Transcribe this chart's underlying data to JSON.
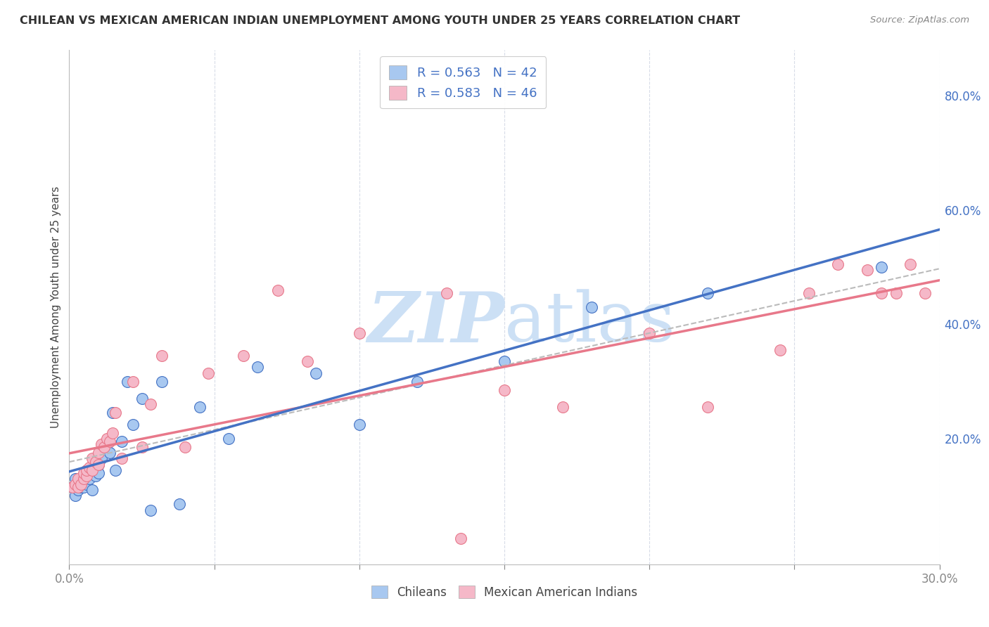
{
  "title": "CHILEAN VS MEXICAN AMERICAN INDIAN UNEMPLOYMENT AMONG YOUTH UNDER 25 YEARS CORRELATION CHART",
  "source": "Source: ZipAtlas.com",
  "ylabel": "Unemployment Among Youth under 25 years",
  "xlim": [
    0.0,
    0.3
  ],
  "ylim": [
    -0.02,
    0.88
  ],
  "xtick_positions": [
    0.0,
    0.05,
    0.1,
    0.15,
    0.2,
    0.25,
    0.3
  ],
  "xticklabel_left": "0.0%",
  "xticklabel_right": "30.0%",
  "right_yticks": [
    0.2,
    0.4,
    0.6,
    0.8
  ],
  "right_yticklabels": [
    "20.0%",
    "40.0%",
    "60.0%",
    "80.0%"
  ],
  "legend_r1": "R = 0.563",
  "legend_n1": "N = 42",
  "legend_r2": "R = 0.583",
  "legend_n2": "N = 46",
  "color_blue": "#a8c8f0",
  "color_pink": "#f5b8c8",
  "color_blue_line": "#4472c4",
  "color_pink_line": "#e8788a",
  "color_blue_text": "#4472c4",
  "color_pink_text": "#e8788a",
  "watermark_color": "#cce0f5",
  "label1": "Chileans",
  "label2": "Mexican American Indians",
  "blue_scatter_x": [
    0.001,
    0.002,
    0.002,
    0.003,
    0.003,
    0.004,
    0.004,
    0.005,
    0.005,
    0.006,
    0.006,
    0.007,
    0.007,
    0.008,
    0.008,
    0.009,
    0.009,
    0.01,
    0.01,
    0.011,
    0.012,
    0.013,
    0.014,
    0.015,
    0.016,
    0.018,
    0.02,
    0.022,
    0.025,
    0.028,
    0.032,
    0.038,
    0.045,
    0.055,
    0.065,
    0.085,
    0.1,
    0.12,
    0.15,
    0.18,
    0.22,
    0.28
  ],
  "blue_scatter_y": [
    0.115,
    0.1,
    0.13,
    0.11,
    0.12,
    0.115,
    0.125,
    0.13,
    0.115,
    0.12,
    0.145,
    0.14,
    0.13,
    0.15,
    0.11,
    0.16,
    0.135,
    0.14,
    0.155,
    0.165,
    0.185,
    0.19,
    0.175,
    0.245,
    0.145,
    0.195,
    0.3,
    0.225,
    0.27,
    0.075,
    0.3,
    0.085,
    0.255,
    0.2,
    0.325,
    0.315,
    0.225,
    0.3,
    0.335,
    0.43,
    0.455,
    0.5
  ],
  "pink_scatter_x": [
    0.001,
    0.002,
    0.003,
    0.003,
    0.004,
    0.005,
    0.005,
    0.006,
    0.006,
    0.007,
    0.008,
    0.008,
    0.009,
    0.01,
    0.01,
    0.011,
    0.012,
    0.013,
    0.014,
    0.015,
    0.016,
    0.018,
    0.022,
    0.025,
    0.028,
    0.032,
    0.04,
    0.048,
    0.06,
    0.072,
    0.082,
    0.1,
    0.13,
    0.15,
    0.17,
    0.2,
    0.22,
    0.245,
    0.255,
    0.265,
    0.275,
    0.28,
    0.285,
    0.29,
    0.295,
    0.135
  ],
  "pink_scatter_y": [
    0.115,
    0.12,
    0.115,
    0.13,
    0.12,
    0.13,
    0.14,
    0.135,
    0.145,
    0.15,
    0.145,
    0.165,
    0.16,
    0.155,
    0.175,
    0.19,
    0.185,
    0.2,
    0.195,
    0.21,
    0.245,
    0.165,
    0.3,
    0.185,
    0.26,
    0.345,
    0.185,
    0.315,
    0.345,
    0.46,
    0.335,
    0.385,
    0.455,
    0.285,
    0.255,
    0.385,
    0.255,
    0.355,
    0.455,
    0.505,
    0.495,
    0.455,
    0.455,
    0.505,
    0.455,
    0.025
  ],
  "grid_color": "#d8dce8",
  "background_color": "#ffffff",
  "reg_line_start": 0.0,
  "reg_line_end": 0.3
}
